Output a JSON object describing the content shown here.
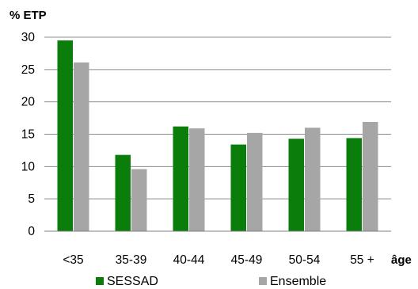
{
  "chart_data": {
    "type": "bar",
    "ylabel": "% ETP",
    "xlabel": "âge",
    "categories": [
      "<35",
      "35-39",
      "40-44",
      "45-49",
      "50-54",
      "55 +"
    ],
    "series": [
      {
        "name": "SESSAD",
        "color": "#0a7d0a",
        "values": [
          29.5,
          11.8,
          16.2,
          13.4,
          14.3,
          14.4
        ]
      },
      {
        "name": "Ensemble",
        "color": "#a6a6a6",
        "values": [
          26.1,
          9.6,
          15.9,
          15.2,
          16.0,
          16.9
        ]
      }
    ],
    "ylim": [
      0,
      30
    ],
    "yticks": [
      0,
      5,
      10,
      15,
      20,
      25,
      30
    ],
    "grid": true,
    "legend_position": "bottom"
  }
}
